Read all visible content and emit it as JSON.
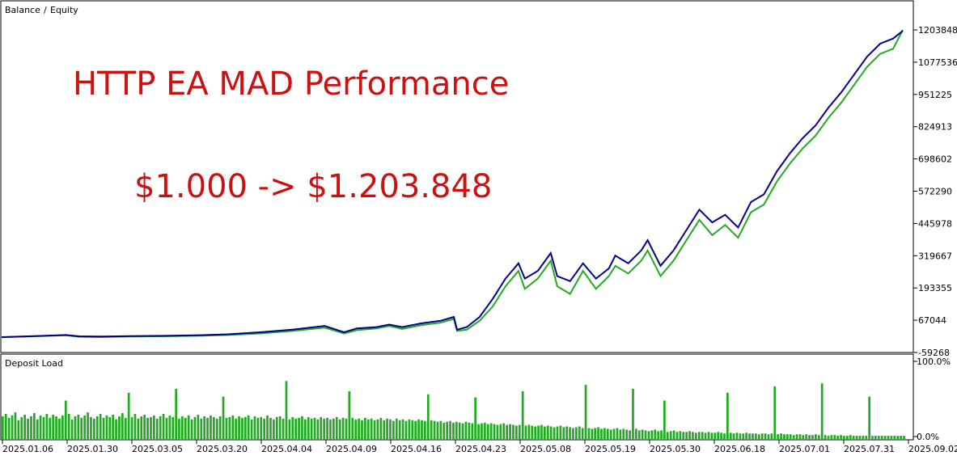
{
  "legend": {
    "balance_label": "Balance",
    "separator": "/",
    "equity_label": "Equity"
  },
  "annotations": {
    "title": "HTTP EA MAD Performance",
    "subtitle": "$1.000 -> $1.203.848"
  },
  "colors": {
    "balance": "#00008b",
    "equity": "#22aa22",
    "deposit_load": "#22aa22",
    "annotation": "#cc1111",
    "equity_legend": "#22aa22",
    "balance_legend": "#00008b"
  },
  "chart_data": [
    {
      "type": "line",
      "title": "",
      "y_tick_labels": [
        "1203848",
        "1077536",
        "951225",
        "824913",
        "698602",
        "572290",
        "445978",
        "319667",
        "193355",
        "67044",
        "-59268"
      ],
      "ylim": [
        -59268,
        1203848
      ],
      "x_tick_labels": [
        "2025.01.06",
        "2025.01.30",
        "2025.03.05",
        "2025.03.20",
        "2025.04.04",
        "2025.04.09",
        "2025.04.16",
        "2025.04.23",
        "2025.05.08",
        "2025.05.19",
        "2025.05.30",
        "2025.06.18",
        "2025.07.01",
        "2025.07.31",
        "2025.09.02"
      ],
      "series": [
        {
          "name": "Balance",
          "x": [
            0,
            0.5,
            1,
            1.2,
            1.5,
            2,
            2.5,
            3,
            3.5,
            4,
            4.5,
            5,
            5.3,
            5.5,
            5.8,
            6,
            6.2,
            6.5,
            6.8,
            7,
            7.05,
            7.2,
            7.4,
            7.6,
            7.8,
            8,
            8.1,
            8.3,
            8.5,
            8.6,
            8.8,
            9,
            9.2,
            9.4,
            9.5,
            9.7,
            9.9,
            10,
            10.2,
            10.4,
            10.6,
            10.8,
            11,
            11.2,
            11.4,
            11.6,
            11.8,
            12,
            12.2,
            12.4,
            12.6,
            12.8,
            13,
            13.2,
            13.4,
            13.6,
            13.8,
            13.95
          ],
          "values": [
            1000,
            5000,
            9000,
            4000,
            3000,
            5000,
            6000,
            8000,
            12000,
            20000,
            30000,
            45000,
            20000,
            35000,
            40000,
            50000,
            40000,
            55000,
            65000,
            80000,
            30000,
            40000,
            80000,
            150000,
            230000,
            290000,
            230000,
            260000,
            330000,
            240000,
            220000,
            290000,
            230000,
            270000,
            320000,
            290000,
            340000,
            380000,
            280000,
            340000,
            420000,
            500000,
            450000,
            480000,
            430000,
            530000,
            560000,
            650000,
            720000,
            780000,
            830000,
            900000,
            960000,
            1030000,
            1100000,
            1150000,
            1170000,
            1200000
          ]
        },
        {
          "name": "Equity",
          "x": [
            0,
            0.5,
            1,
            1.2,
            1.5,
            2,
            2.5,
            3,
            3.5,
            4,
            4.5,
            5,
            5.3,
            5.5,
            5.8,
            6,
            6.2,
            6.5,
            6.8,
            7,
            7.05,
            7.2,
            7.4,
            7.6,
            7.8,
            8,
            8.1,
            8.3,
            8.5,
            8.6,
            8.8,
            9,
            9.2,
            9.4,
            9.5,
            9.7,
            9.9,
            10,
            10.2,
            10.4,
            10.6,
            10.8,
            11,
            11.2,
            11.4,
            11.6,
            11.8,
            12,
            12.2,
            12.4,
            12.6,
            12.8,
            13,
            13.2,
            13.4,
            13.6,
            13.8,
            13.95
          ],
          "values": [
            0,
            4000,
            8000,
            2000,
            1000,
            3000,
            4000,
            6000,
            9000,
            15000,
            25000,
            38000,
            15000,
            28000,
            35000,
            45000,
            33000,
            48000,
            58000,
            72000,
            25000,
            30000,
            65000,
            120000,
            200000,
            260000,
            190000,
            230000,
            300000,
            200000,
            170000,
            260000,
            190000,
            240000,
            280000,
            250000,
            300000,
            340000,
            240000,
            300000,
            380000,
            460000,
            400000,
            440000,
            390000,
            490000,
            520000,
            610000,
            680000,
            740000,
            790000,
            860000,
            920000,
            990000,
            1060000,
            1110000,
            1130000,
            1203848
          ]
        }
      ]
    },
    {
      "type": "bar",
      "title": "Deposit Load",
      "y_tick_labels": [
        "100.0%",
        "0.0%"
      ],
      "ylim": [
        0,
        100
      ],
      "series": [
        {
          "name": "Deposit Load",
          "values": [
            30,
            33,
            28,
            31,
            35,
            25,
            29,
            32,
            27,
            30,
            34,
            26,
            31,
            29,
            33,
            28,
            32,
            30,
            27,
            31,
            29,
            33,
            26,
            30,
            32,
            28,
            31,
            35,
            29,
            27,
            30,
            33,
            28,
            31,
            29,
            32,
            26,
            30,
            34,
            28,
            31,
            29,
            33,
            27,
            30,
            32,
            28,
            29,
            31,
            27,
            30,
            33,
            28,
            31,
            29,
            32,
            27,
            30,
            28,
            31,
            26,
            29,
            32,
            27,
            30,
            28,
            31,
            29,
            27,
            30,
            32,
            28,
            29,
            31,
            27,
            30,
            28,
            29,
            31,
            26,
            30,
            28,
            29,
            27,
            31,
            28,
            26,
            29,
            30,
            27,
            28,
            26,
            29,
            27,
            28,
            30,
            26,
            29,
            27,
            28,
            26,
            29,
            27,
            28,
            26,
            27,
            29,
            26,
            28,
            27,
            25,
            28,
            26,
            27,
            25,
            28,
            26,
            27,
            25,
            26,
            28,
            25,
            27,
            26,
            24,
            27,
            25,
            26,
            24,
            26,
            25,
            24,
            26,
            25,
            24,
            23,
            25,
            24,
            23,
            24,
            22,
            23,
            24,
            22,
            23,
            22,
            21,
            23,
            22,
            21,
            22,
            20,
            21,
            22,
            20,
            21,
            20,
            19,
            20,
            21,
            19,
            20,
            19,
            18,
            19,
            20,
            18,
            19,
            18,
            17,
            18,
            19,
            17,
            18,
            17,
            16,
            17,
            18,
            16,
            17,
            16,
            15,
            16,
            17,
            15,
            16,
            15,
            14,
            15,
            16,
            14,
            15,
            14,
            13,
            14,
            15,
            13,
            14,
            13,
            12,
            13,
            14,
            12,
            13,
            12,
            11,
            12,
            13,
            11,
            12,
            11,
            10,
            11,
            12,
            10,
            11,
            10,
            10,
            11,
            10,
            9,
            10,
            10,
            9,
            10,
            9,
            9,
            10,
            9,
            8,
            9,
            9,
            8,
            9,
            8,
            8,
            9,
            8,
            8,
            8,
            7,
            8,
            8,
            7,
            8,
            7,
            7,
            8,
            7,
            7,
            7,
            6,
            7,
            7,
            6,
            7,
            6,
            6,
            7,
            6,
            6,
            6,
            5,
            6,
            6,
            5,
            6,
            5,
            5,
            6,
            5,
            5,
            5,
            5,
            5,
            5,
            5,
            5,
            5,
            5,
            5,
            5,
            5,
            5,
            5,
            5,
            5
          ],
          "spikes": [
            [
              20,
              50
            ],
            [
              40,
              60
            ],
            [
              55,
              65
            ],
            [
              70,
              55
            ],
            [
              90,
              75
            ],
            [
              110,
              62
            ],
            [
              135,
              58
            ],
            [
              150,
              54
            ],
            [
              165,
              62
            ],
            [
              185,
              70
            ],
            [
              200,
              65
            ],
            [
              210,
              50
            ],
            [
              230,
              60
            ],
            [
              245,
              68
            ],
            [
              260,
              72
            ],
            [
              275,
              55
            ],
            [
              290,
              60
            ],
            [
              305,
              66
            ],
            [
              320,
              70
            ],
            [
              335,
              60
            ],
            [
              350,
              62
            ]
          ]
        }
      ]
    }
  ]
}
